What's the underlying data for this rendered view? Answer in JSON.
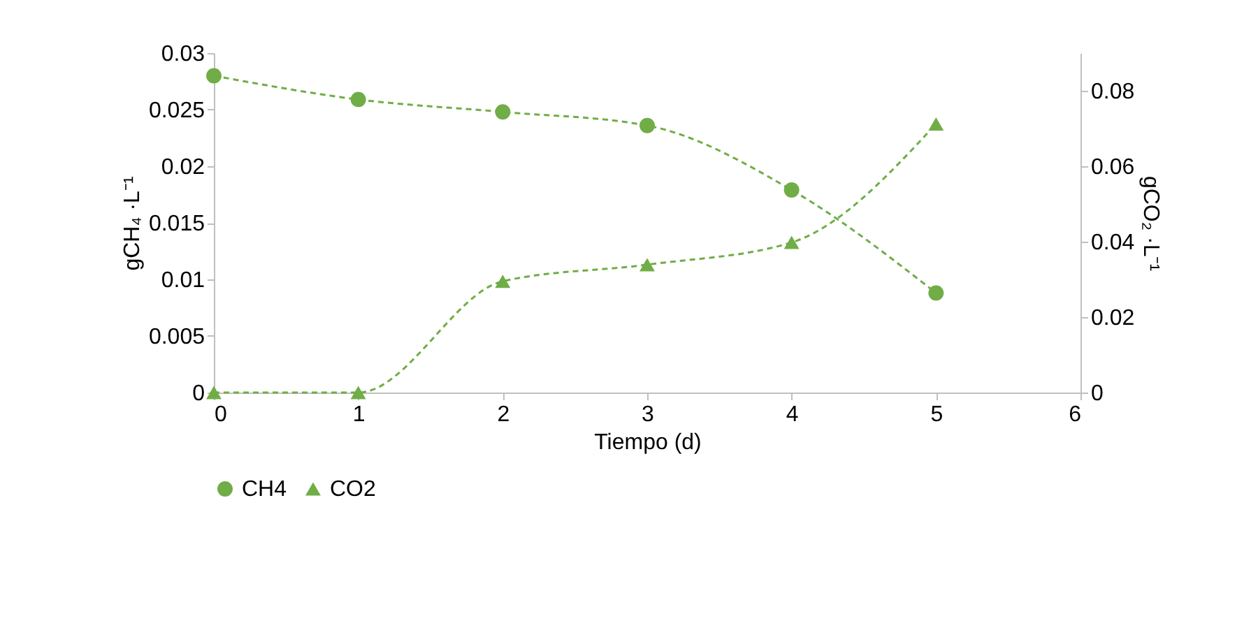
{
  "chart_data": {
    "type": "line",
    "xlabel": "Tiempo (d)",
    "ylabel": "gCH₄ ·L⁻¹",
    "y2label": "gCO₂ ·L⁻¹",
    "x": [
      0,
      1,
      2,
      3,
      4,
      5
    ],
    "series": [
      {
        "name": "CH4",
        "color": "#70ad47",
        "marker": "circle",
        "values": [
          0.028,
          0.0259,
          0.0248,
          0.0236,
          0.0179,
          0.0088
        ]
      },
      {
        "name": "CO2",
        "color": "#70ad47",
        "marker": "triangle",
        "axis": "y2",
        "values": [
          0,
          0,
          0.0295,
          0.0339,
          0.0398,
          0.0712
        ]
      }
    ],
    "xlim": [
      0,
      6
    ],
    "xticks": [
      0,
      1,
      2,
      3,
      4,
      5,
      6
    ],
    "ylim": [
      0,
      0.03
    ],
    "yticks": [
      0,
      0.005,
      0.01,
      0.015,
      0.02,
      0.025,
      0.03
    ],
    "y2lim": [
      0,
      0.09
    ],
    "y2ticks": [
      0,
      0.02,
      0.04,
      0.06,
      0.08
    ],
    "line_style": "dashed",
    "grid": false,
    "legend": "bottom"
  }
}
